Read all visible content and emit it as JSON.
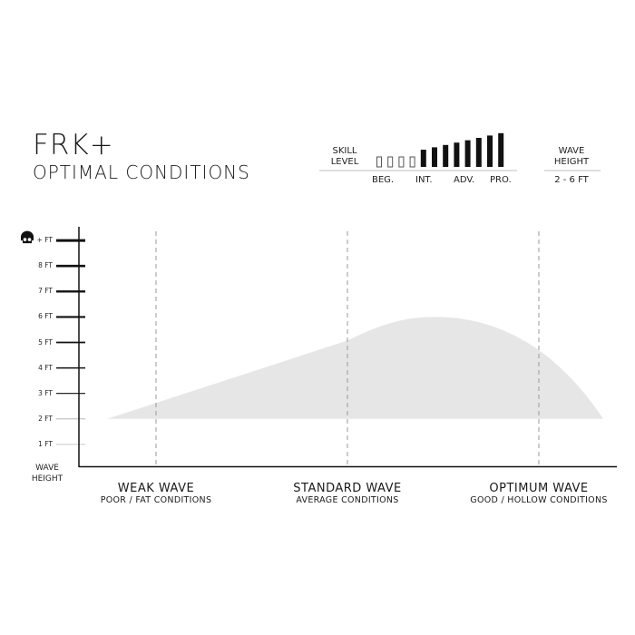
{
  "header": {
    "title": "FRK+",
    "subtitle": "OPTIMAL CONDITIONS"
  },
  "skill": {
    "label_line1": "SKILL",
    "label_line2": "LEVEL",
    "bars_total": 12,
    "bars_filled_from": 5,
    "levels": [
      "BEG.",
      "INT.",
      "ADV.",
      "PRO."
    ]
  },
  "wave_height": {
    "label_line1": "WAVE",
    "label_line2": "HEIGHT",
    "value": "2 - 6 FT"
  },
  "chart_data": {
    "type": "area",
    "y_axis": {
      "label_line1": "WAVE",
      "label_line2": "HEIGHT",
      "ticks": [
        "1 FT",
        "2 FT",
        "3 FT",
        "4 FT",
        "5 FT",
        "6 FT",
        "7 FT",
        "8 FT",
        "+ FT"
      ],
      "top_icon": "skull-icon",
      "range": [
        0,
        9
      ]
    },
    "x_categories": [
      {
        "title": "WEAK WAVE",
        "subtitle": "POOR / FAT CONDITIONS"
      },
      {
        "title": "STANDARD WAVE",
        "subtitle": "AVERAGE CONDITIONS"
      },
      {
        "title": "OPTIMUM WAVE",
        "subtitle": "GOOD / HOLLOW CONDITIONS"
      }
    ],
    "area": {
      "min_ft": 2,
      "max_ft": 6,
      "fill": "#e6e6e6"
    }
  }
}
